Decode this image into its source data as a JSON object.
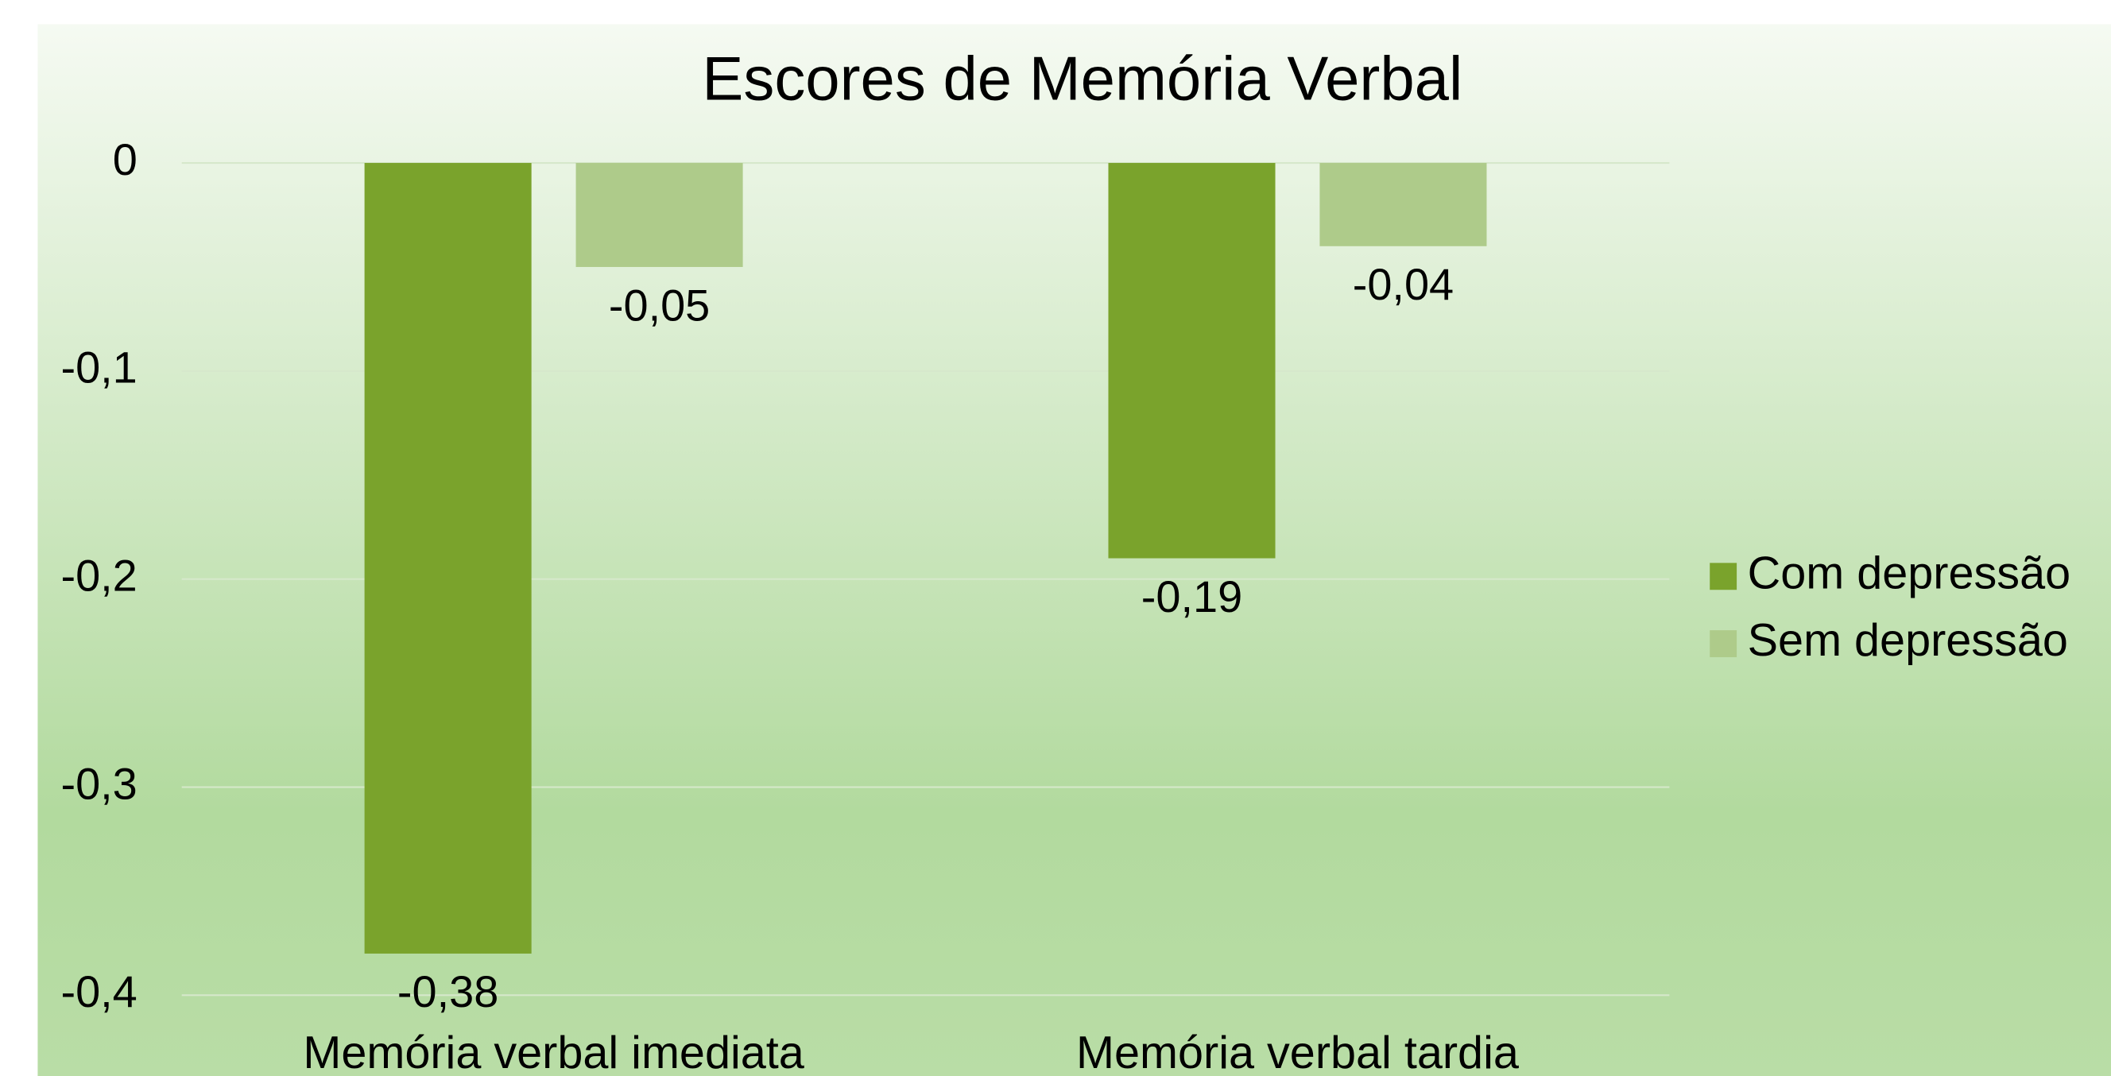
{
  "chart_data": {
    "type": "bar",
    "title": "Escores de Memória Verbal",
    "categories": [
      "Memória verbal imediata",
      "Memória verbal tardia"
    ],
    "series": [
      {
        "name": "Com depressão",
        "color": "#7aa32c",
        "values": [
          -0.38,
          -0.19
        ],
        "value_labels": [
          "-0,38",
          "-0,19"
        ]
      },
      {
        "name": "Sem depressão",
        "color": "#aecb8a",
        "values": [
          -0.05,
          -0.04
        ],
        "value_labels": [
          "-0,05",
          "-0,04"
        ]
      }
    ],
    "ylim": [
      -0.4,
      0
    ],
    "yticks": [
      0,
      {
        "value": -0.1,
        "label": "-0,1"
      },
      {
        "value": -0.2,
        "label": "-0,2"
      },
      {
        "value": -0.3,
        "label": "-0,3"
      },
      {
        "value": -0.4,
        "label": "-0,4"
      }
    ],
    "grid": true,
    "legend": "right"
  }
}
